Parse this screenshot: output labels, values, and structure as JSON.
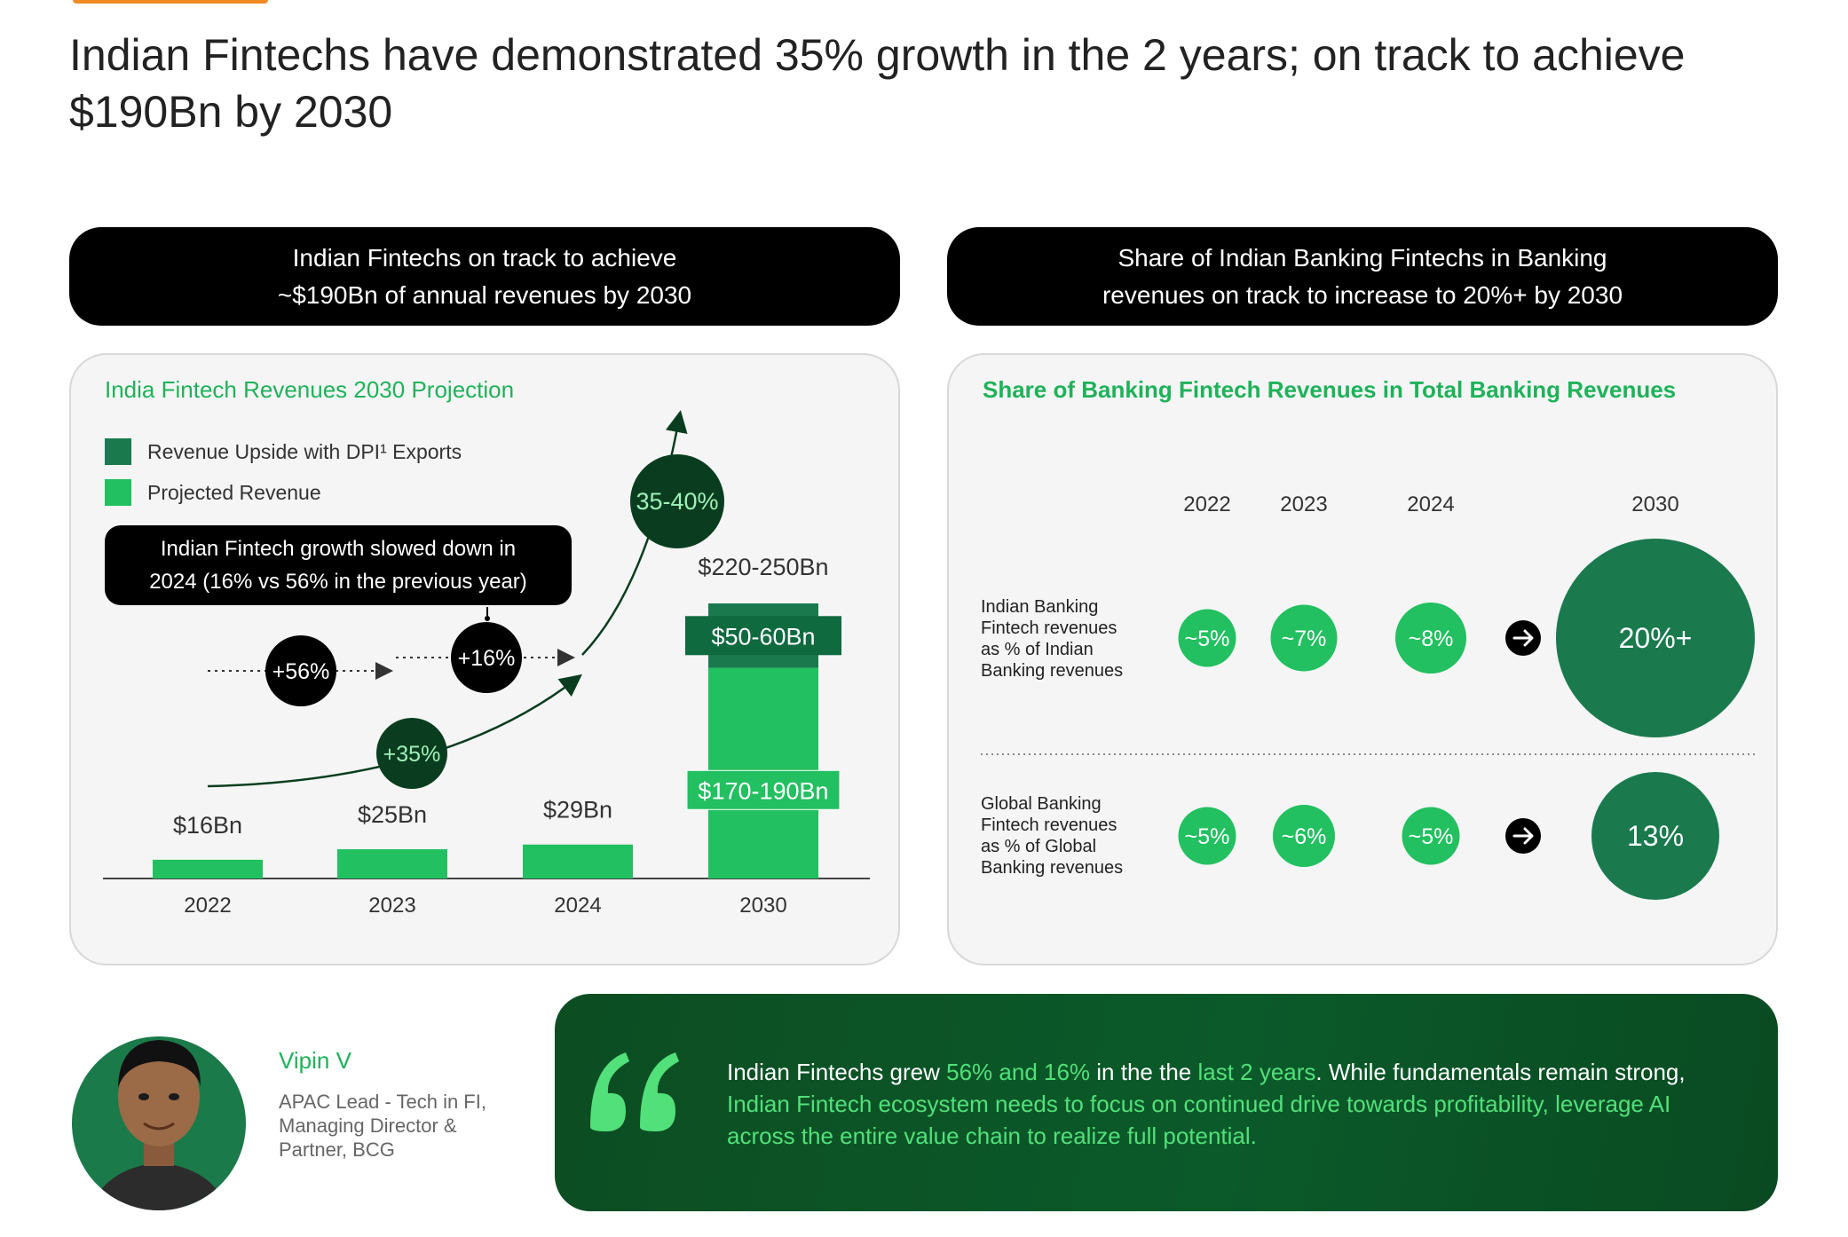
{
  "page": {
    "title": "Indian Fintechs have demonstrated 35% growth in the 2 years; on track to achieve $190Bn by 2030"
  },
  "left_panel": {
    "header_line1": "Indian Fintechs on track to achieve",
    "header_line2": "~$190Bn of annual revenues by 2030",
    "card_title": "India Fintech Revenues 2030 Projection",
    "callout_line1": "Indian Fintech growth slowed down in",
    "callout_line2": "2024 (16% vs 56% in the previous year)"
  },
  "right_panel": {
    "header_line1": "Share of Indian Banking Fintechs in Banking",
    "header_line2": "revenues on track to increase to 20%+ by 2030",
    "card_title": "Share of Banking Fintech Revenues in Total Banking Revenues",
    "row1_label": [
      "Indian Banking",
      "Fintech revenues",
      "as % of Indian",
      "Banking revenues"
    ],
    "row2_label": [
      "Global Banking",
      "Fintech revenues",
      "as % of Global",
      "Banking revenues"
    ]
  },
  "chart_data": [
    {
      "type": "bar",
      "title": "India Fintech Revenues 2030 Projection",
      "categories": [
        "2022",
        "2023",
        "2024",
        "2030"
      ],
      "series": [
        {
          "name": "Projected Revenue",
          "values": [
            16,
            25,
            29,
            180
          ],
          "labels": [
            "$16Bn",
            "$25Bn",
            "$29Bn",
            "$170-190Bn"
          ]
        },
        {
          "name": "Revenue Upside with DPI¹ Exports",
          "values": [
            0,
            0,
            0,
            55
          ],
          "labels": [
            "",
            "",
            "",
            "$50-60Bn"
          ]
        }
      ],
      "total_labels": [
        "$16Bn",
        "$25Bn",
        "$29Bn",
        "$220-250Bn"
      ],
      "growth_annotations": [
        "+56%",
        "+16%",
        "+35%",
        "35-40%"
      ],
      "colors": {
        "projected": "#22c060",
        "upside": "#1a7a4e",
        "bubble_dark": "#0a3d1f",
        "bubble_black": "#000000"
      }
    },
    {
      "type": "table",
      "title": "Share of Banking Fintech Revenues in Total Banking Revenues",
      "columns": [
        "2022",
        "2023",
        "2024",
        "2030"
      ],
      "rows": [
        {
          "name": "Indian Banking Fintech revenues as % of Indian Banking revenues",
          "values": [
            5,
            7,
            8,
            20
          ],
          "labels": [
            "~5%",
            "~7%",
            "~8%",
            "20%+"
          ]
        },
        {
          "name": "Global Banking Fintech revenues as % of Global Banking revenues",
          "values": [
            5,
            6,
            5,
            13
          ],
          "labels": [
            "~5%",
            "~6%",
            "~5%",
            "13%"
          ]
        }
      ],
      "colors": {
        "small_bubble": "#22c060",
        "large_bubble": "#1a7a4e"
      }
    }
  ],
  "quote": {
    "person_name": "Vipin V",
    "person_role": "APAC Lead - Tech in FI, Managing Director & Partner, BCG",
    "t1": "Indian Fintechs grew ",
    "t2": "56% and 16%",
    "t3": " in the the ",
    "t4": "last 2 years",
    "t5": ". While fundamentals remain strong, ",
    "t6": "Indian Fintech ecosystem needs to focus on continued drive towards profitability, leverage AI across the entire value chain to realize full potential."
  }
}
